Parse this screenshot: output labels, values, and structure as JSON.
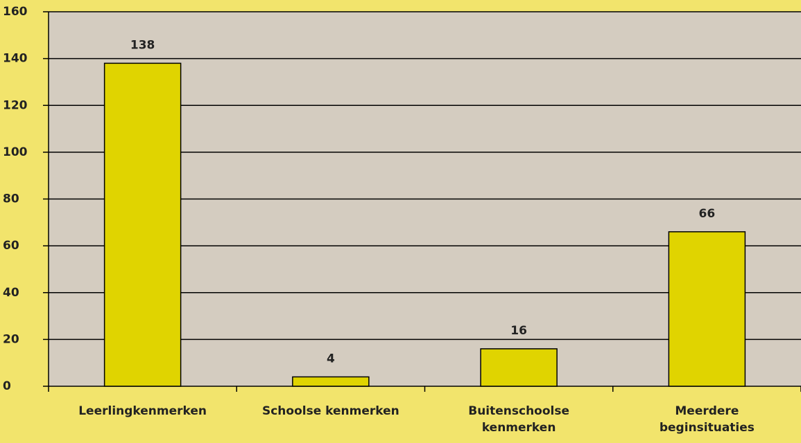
{
  "chart_data": {
    "type": "bar",
    "categories": [
      "Leerlingkenmerken",
      "Schoolse kenmerken",
      "Buitenschoolse\nkenmerken",
      "Meerdere\nbeginsituaties"
    ],
    "values": [
      138,
      4,
      16,
      66
    ],
    "color": "#e0d400",
    "ylim": [
      0,
      160
    ],
    "yticks": [
      0,
      20,
      40,
      60,
      80,
      100,
      120,
      140,
      160
    ],
    "grid": true
  }
}
